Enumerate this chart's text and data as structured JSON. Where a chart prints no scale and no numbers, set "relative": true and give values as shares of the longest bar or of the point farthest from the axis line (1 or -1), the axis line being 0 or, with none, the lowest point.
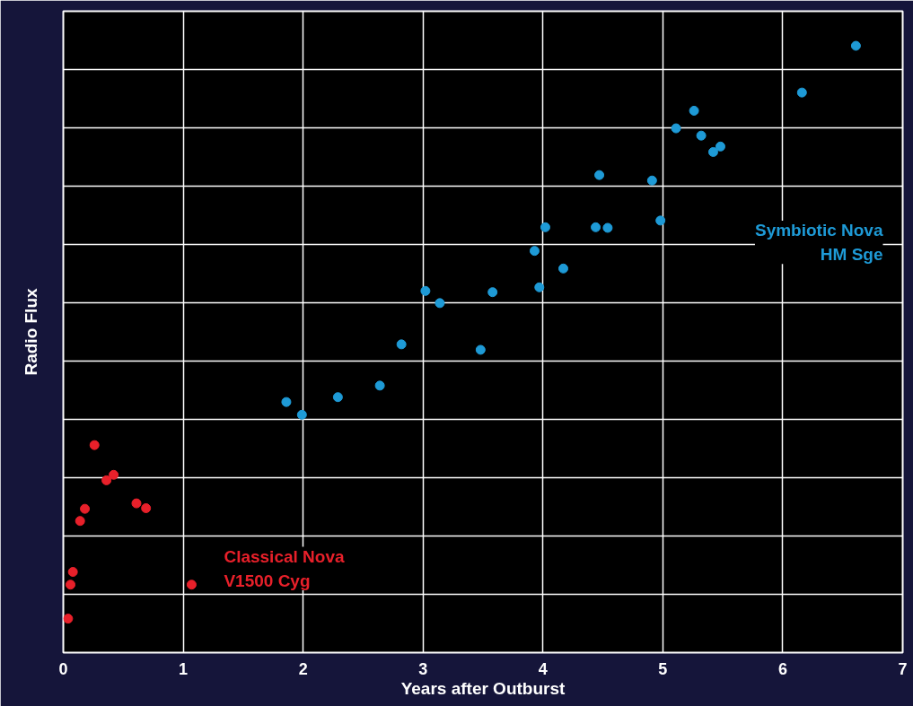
{
  "chart_data": {
    "type": "scatter",
    "xlabel": "Years after Outburst",
    "ylabel": "Radio Flux",
    "relative": true,
    "xlim": [
      0,
      7
    ],
    "xticks": [
      0,
      1,
      2,
      3,
      4,
      5,
      6,
      7
    ],
    "grid": true,
    "marker": "circle",
    "series": [
      {
        "name": "Classical Nova\nV1500 Cyg",
        "color": "#e8202a",
        "x": [
          0.04,
          0.06,
          0.08,
          0.14,
          0.18,
          0.26,
          0.36,
          0.42,
          0.61,
          0.69,
          1.07
        ],
        "values": [
          0.056,
          0.112,
          0.133,
          0.217,
          0.237,
          0.342,
          0.284,
          0.293,
          0.246,
          0.238,
          0.112
        ]
      },
      {
        "name": "Symbiotic Nova\nHM Sge",
        "color": "#1e9ad6",
        "x": [
          1.86,
          1.99,
          2.29,
          2.64,
          2.82,
          3.02,
          3.14,
          3.48,
          3.58,
          3.93,
          3.97,
          4.02,
          4.17,
          4.44,
          4.47,
          4.54,
          4.91,
          4.98,
          5.11,
          5.26,
          5.32,
          5.42,
          5.48,
          6.16,
          6.61
        ],
        "values": [
          0.413,
          0.392,
          0.421,
          0.44,
          0.508,
          0.596,
          0.576,
          0.499,
          0.594,
          0.662,
          0.602,
          0.701,
          0.633,
          0.701,
          0.787,
          0.7,
          0.778,
          0.712,
          0.864,
          0.893,
          0.852,
          0.825,
          0.834,
          0.923,
          1.0
        ]
      }
    ]
  }
}
